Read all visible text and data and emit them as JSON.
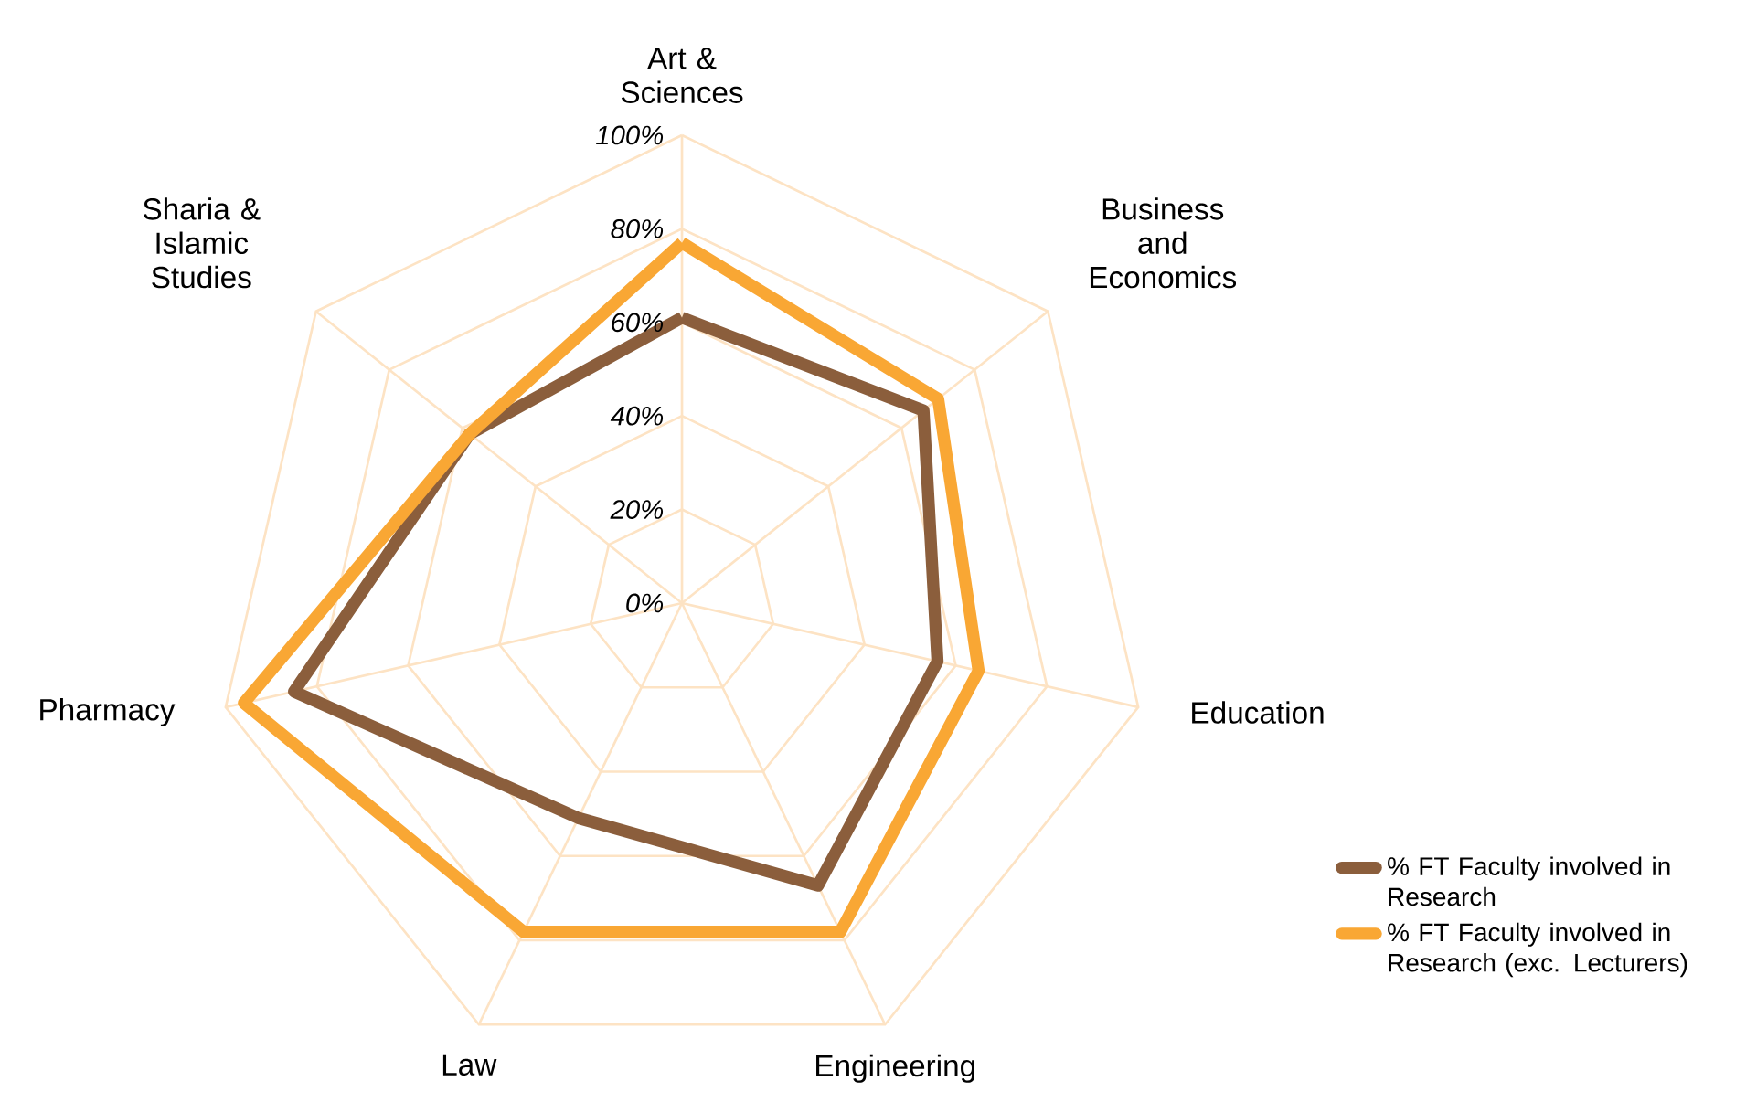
{
  "chart_data": {
    "type": "radar",
    "categories": [
      "Art & Sciences",
      "Business and Economics",
      "Education",
      "Engineering",
      "Law",
      "Pharmacy",
      "Sharia & Islamic Studies"
    ],
    "series": [
      {
        "name": "% FT Faculty involved in Research",
        "color": "#8b5e3c",
        "values": [
          61,
          66,
          56,
          67,
          51,
          85,
          58
        ]
      },
      {
        "name": "% FT Faculty involved in Research (exc. Lecturers)",
        "color": "#f9a734",
        "values": [
          77,
          70,
          65,
          78,
          78,
          96,
          58
        ]
      }
    ],
    "ylim": [
      0,
      100
    ],
    "yticks": [
      {
        "value": 0,
        "label": "0%"
      },
      {
        "value": 20,
        "label": "20%"
      },
      {
        "value": 40,
        "label": "40%"
      },
      {
        "value": 60,
        "label": "60%"
      },
      {
        "value": 80,
        "label": "80%"
      },
      {
        "value": 100,
        "label": "100%"
      }
    ],
    "grid": true,
    "legend": "bottom right",
    "marker": "none",
    "line_style": "solid"
  }
}
